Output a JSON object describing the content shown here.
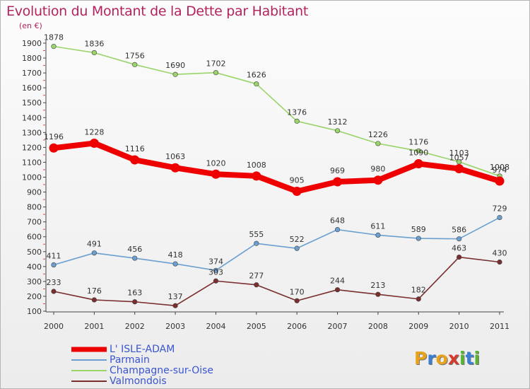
{
  "title": "Evolution du Montant de la Dette par Habitant",
  "unit_label": "(en €)",
  "logo": {
    "letters": [
      "P",
      "r",
      "o",
      "x",
      "i",
      "t",
      "i"
    ],
    "colors": [
      "#e8a21b",
      "#3a7fd5",
      "#e8a21b",
      "#d63a2a",
      "#58b530",
      "#3a7fd5",
      "#58b530"
    ]
  },
  "chart_data": {
    "type": "line",
    "x": [
      "2000",
      "2001",
      "2002",
      "2003",
      "2004",
      "2005",
      "2006",
      "2007",
      "2008",
      "2009",
      "2010",
      "2011"
    ],
    "ylim": [
      100,
      1900
    ],
    "yticks": [
      100,
      200,
      300,
      400,
      500,
      600,
      700,
      800,
      900,
      1000,
      1100,
      1200,
      1300,
      1400,
      1500,
      1600,
      1700,
      1800,
      1900
    ],
    "grid": false,
    "legend_position": "bottom-left",
    "series": [
      {
        "name": "L' ISLE-ADAM",
        "color": "#ee0000",
        "values": [
          1196,
          1228,
          1116,
          1063,
          1020,
          1008,
          905,
          969,
          980,
          1090,
          1057,
          974
        ]
      },
      {
        "name": "Parmain",
        "color": "#6a9fd0",
        "values": [
          411,
          491,
          456,
          418,
          374,
          555,
          522,
          648,
          611,
          589,
          586,
          729
        ]
      },
      {
        "name": "Champagne-sur-Oise",
        "color": "#9ad46a",
        "values": [
          1878,
          1836,
          1756,
          1690,
          1702,
          1626,
          1376,
          1312,
          1226,
          1176,
          1103,
          1008
        ]
      },
      {
        "name": "Valmondois",
        "color": "#7a2e2e",
        "values": [
          233,
          176,
          163,
          137,
          303,
          277,
          170,
          244,
          213,
          182,
          463,
          430
        ]
      }
    ]
  }
}
